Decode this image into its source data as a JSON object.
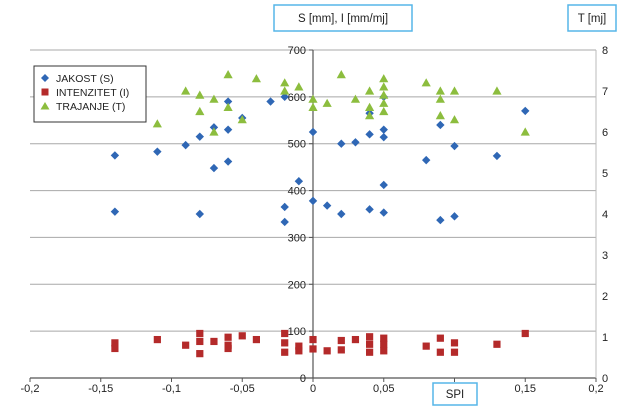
{
  "chart_data": {
    "type": "scatter",
    "title": "",
    "xlabel": "SPI",
    "ylabel_left": "S [mm], I [mm/mj]",
    "ylabel_right": "T [mj]",
    "xlim": [
      -0.2,
      0.2
    ],
    "ylim_left": [
      0,
      700
    ],
    "ylim_right": [
      0,
      8
    ],
    "x_ticks": [
      "-0,2",
      "-0,15",
      "-0,1",
      "-0,05",
      "0",
      "0,05",
      "0,1",
      "0,15",
      "0,2"
    ],
    "y_left_ticks": [
      "0",
      "100",
      "200",
      "300",
      "400",
      "500",
      "600",
      "700"
    ],
    "y_right_ticks": [
      "0",
      "1",
      "2",
      "3",
      "4",
      "5",
      "6",
      "7",
      "8"
    ],
    "grid": "horizontal",
    "legend_position": "top-left",
    "colors": {
      "jakost": "#2f67b5",
      "intenzitet": "#b42a2a",
      "trajanje": "#8cbd3e",
      "axis_box_border": "#56b6e8",
      "grid": "#a8a8a8"
    },
    "series": [
      {
        "name": "JAKOST (S)",
        "marker": "diamond",
        "axis": "left",
        "points": [
          [
            -0.14,
            475
          ],
          [
            -0.14,
            355
          ],
          [
            -0.11,
            483
          ],
          [
            -0.09,
            497
          ],
          [
            -0.08,
            515
          ],
          [
            -0.08,
            350
          ],
          [
            -0.07,
            448
          ],
          [
            -0.07,
            535
          ],
          [
            -0.06,
            530
          ],
          [
            -0.06,
            462
          ],
          [
            -0.06,
            590
          ],
          [
            -0.05,
            555
          ],
          [
            -0.03,
            590
          ],
          [
            -0.02,
            600
          ],
          [
            -0.02,
            365
          ],
          [
            -0.02,
            333
          ],
          [
            -0.01,
            420
          ],
          [
            0.0,
            525
          ],
          [
            0.0,
            378
          ],
          [
            0.01,
            368
          ],
          [
            0.02,
            500
          ],
          [
            0.02,
            350
          ],
          [
            0.03,
            503
          ],
          [
            0.04,
            520
          ],
          [
            0.04,
            360
          ],
          [
            0.04,
            565
          ],
          [
            0.05,
            530
          ],
          [
            0.05,
            514
          ],
          [
            0.05,
            600
          ],
          [
            0.05,
            412
          ],
          [
            0.05,
            353
          ],
          [
            0.08,
            465
          ],
          [
            0.09,
            540
          ],
          [
            0.09,
            337
          ],
          [
            0.1,
            495
          ],
          [
            0.1,
            345
          ],
          [
            0.13,
            474
          ],
          [
            0.15,
            570
          ]
        ]
      },
      {
        "name": "INTENZITET (I)",
        "marker": "square",
        "axis": "left",
        "points": [
          [
            -0.14,
            75
          ],
          [
            -0.14,
            63
          ],
          [
            -0.11,
            82
          ],
          [
            -0.09,
            70
          ],
          [
            -0.08,
            95
          ],
          [
            -0.08,
            78
          ],
          [
            -0.08,
            52
          ],
          [
            -0.07,
            78
          ],
          [
            -0.06,
            87
          ],
          [
            -0.06,
            70
          ],
          [
            -0.06,
            63
          ],
          [
            -0.05,
            90
          ],
          [
            -0.04,
            82
          ],
          [
            -0.02,
            95
          ],
          [
            -0.02,
            75
          ],
          [
            -0.02,
            55
          ],
          [
            -0.01,
            68
          ],
          [
            -0.01,
            58
          ],
          [
            0.0,
            82
          ],
          [
            0.0,
            62
          ],
          [
            0.01,
            58
          ],
          [
            0.02,
            80
          ],
          [
            0.02,
            60
          ],
          [
            0.03,
            82
          ],
          [
            0.04,
            88
          ],
          [
            0.04,
            72
          ],
          [
            0.04,
            55
          ],
          [
            0.05,
            85
          ],
          [
            0.05,
            72
          ],
          [
            0.05,
            58
          ],
          [
            0.08,
            68
          ],
          [
            0.09,
            85
          ],
          [
            0.09,
            55
          ],
          [
            0.1,
            75
          ],
          [
            0.1,
            55
          ],
          [
            0.13,
            72
          ],
          [
            0.15,
            95
          ]
        ]
      },
      {
        "name": "TRAJANJE (T)",
        "marker": "triangle",
        "axis": "right",
        "points": [
          [
            -0.11,
            6.2
          ],
          [
            -0.09,
            7.0
          ],
          [
            -0.08,
            6.9
          ],
          [
            -0.08,
            6.5
          ],
          [
            -0.07,
            6.8
          ],
          [
            -0.07,
            6.0
          ],
          [
            -0.06,
            7.4
          ],
          [
            -0.06,
            6.6
          ],
          [
            -0.05,
            6.3
          ],
          [
            -0.04,
            7.3
          ],
          [
            -0.02,
            7.2
          ],
          [
            -0.02,
            7.0
          ],
          [
            -0.01,
            7.1
          ],
          [
            0.0,
            6.8
          ],
          [
            0.0,
            6.6
          ],
          [
            0.01,
            6.7
          ],
          [
            0.02,
            7.4
          ],
          [
            0.03,
            6.8
          ],
          [
            0.04,
            7.0
          ],
          [
            0.04,
            6.6
          ],
          [
            0.04,
            6.4
          ],
          [
            0.05,
            7.3
          ],
          [
            0.05,
            7.1
          ],
          [
            0.05,
            6.9
          ],
          [
            0.05,
            6.7
          ],
          [
            0.05,
            6.5
          ],
          [
            0.08,
            7.2
          ],
          [
            0.09,
            7.0
          ],
          [
            0.09,
            6.8
          ],
          [
            0.09,
            6.4
          ],
          [
            0.1,
            7.0
          ],
          [
            0.1,
            6.3
          ],
          [
            0.13,
            7.0
          ],
          [
            0.15,
            6.0
          ]
        ]
      }
    ]
  }
}
